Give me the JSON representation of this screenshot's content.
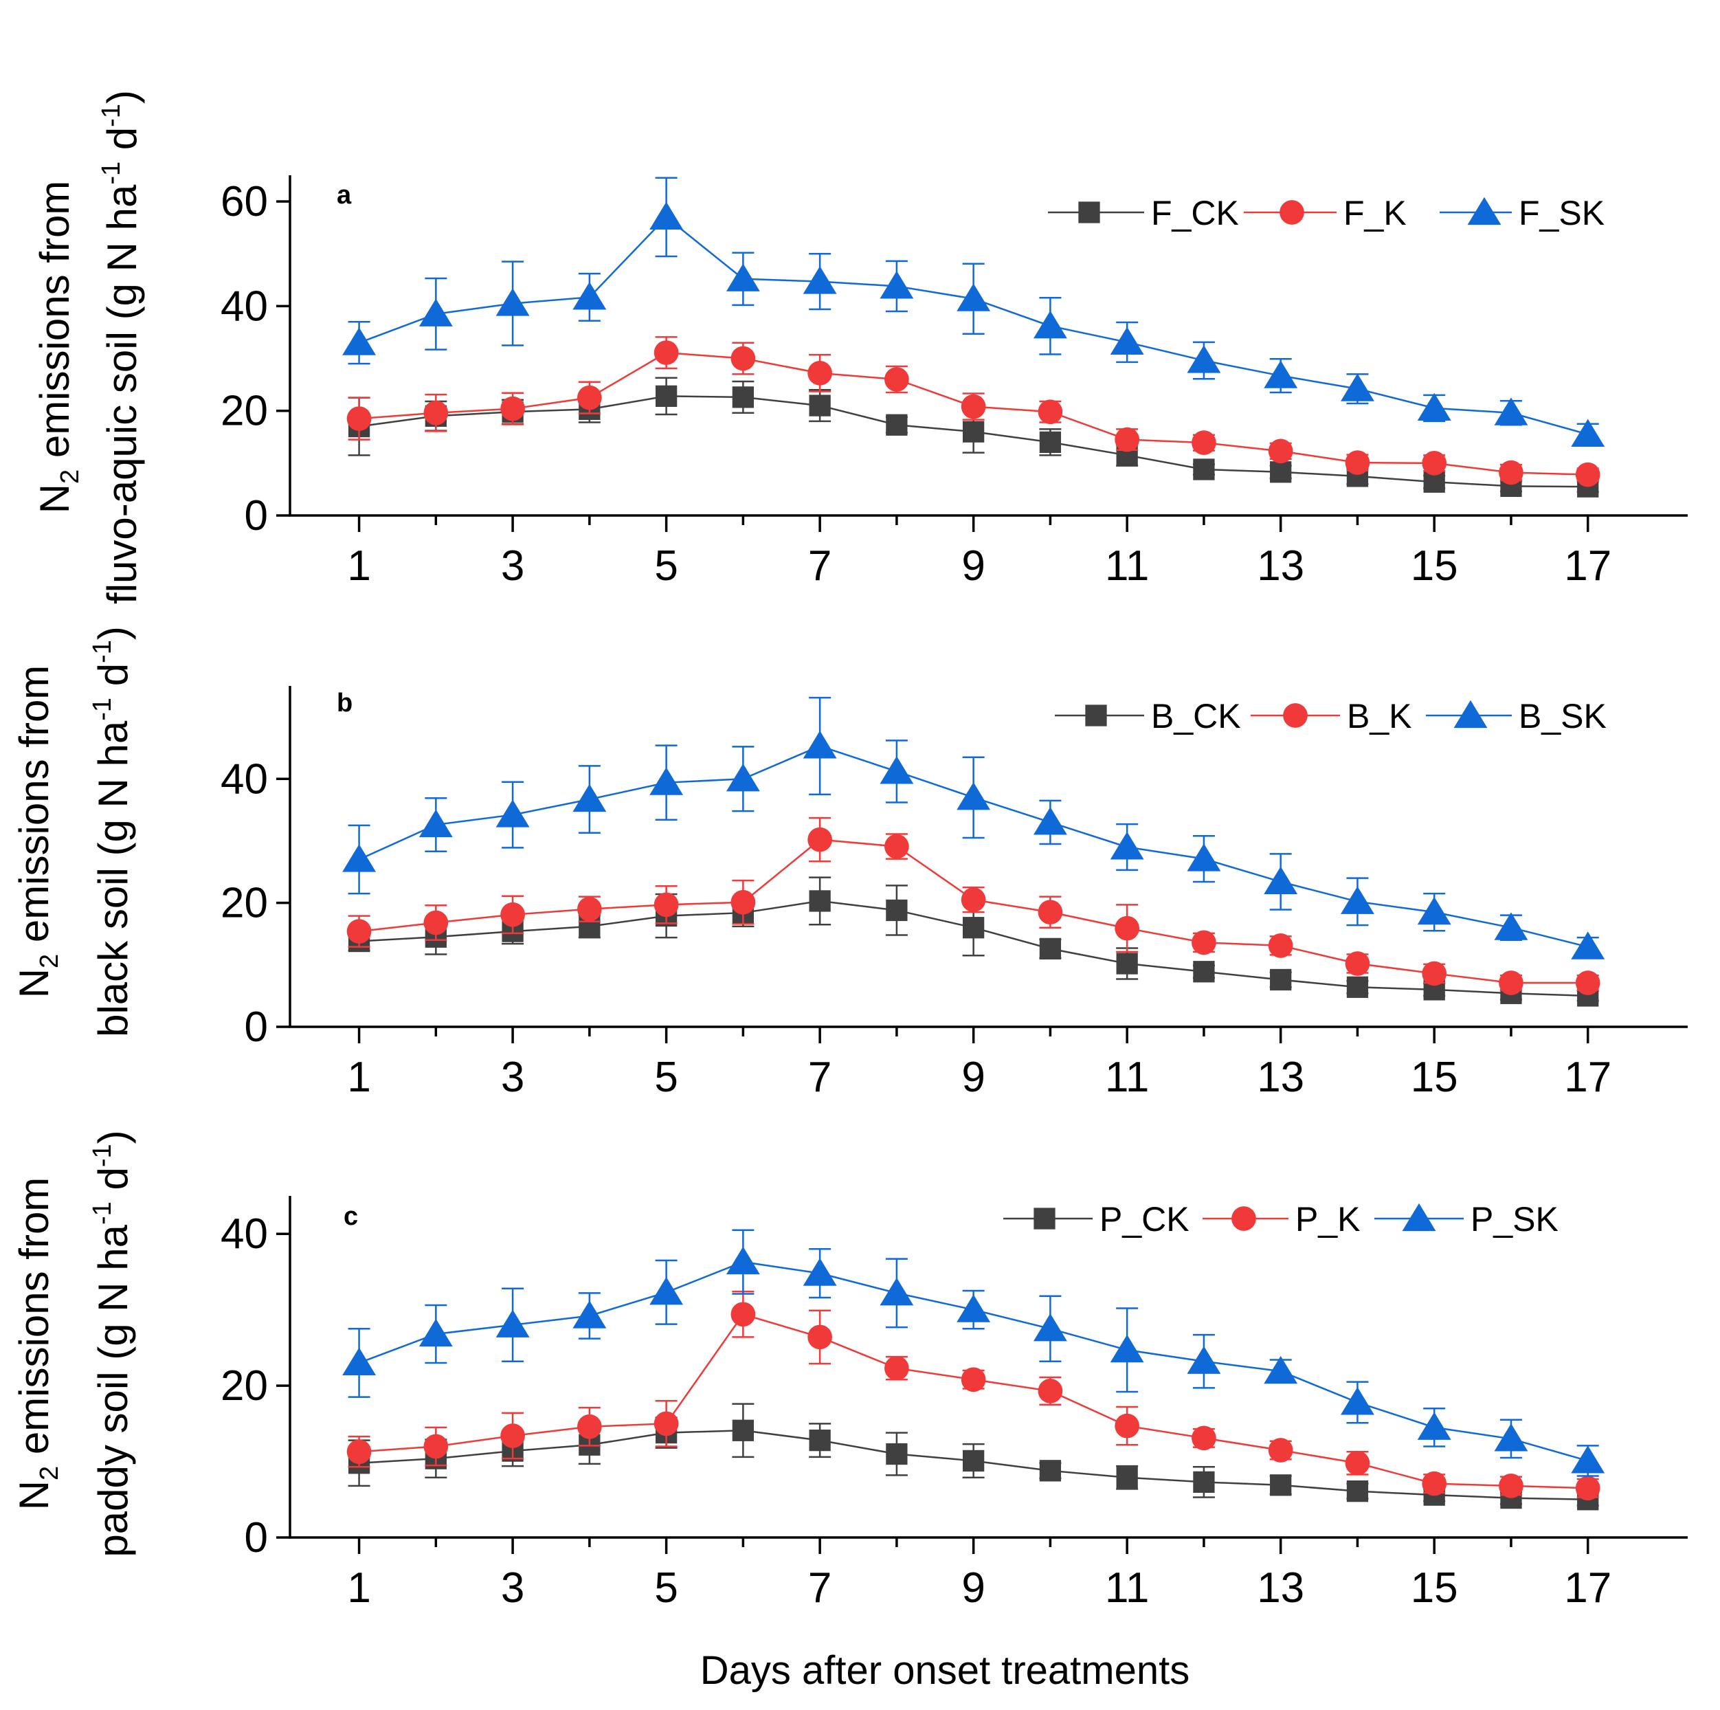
{
  "chart_data": [
    {
      "type": "line",
      "panel_label": "a",
      "ylabel_line1": "N",
      "ylabel_sub": "2",
      "ylabel_line1_rest": " emissions from",
      "ylabel_line2": "fluvo-aquic soil (g N ha",
      "ylabel_sup1": "-1",
      "ylabel_mid": " d",
      "ylabel_sup2": "-1",
      "ylabel_end": ")",
      "xlim": [
        0.1,
        18.3
      ],
      "ylim": [
        0,
        65
      ],
      "xticks": [
        1,
        3,
        5,
        7,
        9,
        11,
        13,
        15,
        17
      ],
      "xtick_labels": [
        "1",
        "3",
        "5",
        "7",
        "9",
        "11",
        "13",
        "15",
        "17"
      ],
      "yticks": [
        0,
        20,
        40,
        60
      ],
      "ytick_labels": [
        "0",
        "20",
        "40",
        "60"
      ],
      "x": [
        1,
        2,
        3,
        4,
        5,
        6,
        7,
        8,
        9,
        10,
        11,
        12,
        13,
        14,
        15,
        16,
        17
      ],
      "series": [
        {
          "name": "F_CK",
          "color": "#404040",
          "marker": "square",
          "values": [
            17,
            19,
            19.8,
            20.3,
            22.8,
            22.6,
            21,
            17.3,
            16,
            14,
            11.5,
            8.8,
            8.3,
            7.5,
            6.4,
            5.6,
            5.5
          ],
          "errors": [
            5.5,
            2.8,
            2.3,
            2.5,
            3.5,
            3,
            3,
            1.5,
            4,
            2.5,
            2,
            1,
            1.2,
            1.5,
            1.2,
            1,
            1
          ]
        },
        {
          "name": "F_K",
          "color": "#f03a3a",
          "marker": "circle",
          "values": [
            18.5,
            19.6,
            20.4,
            22.5,
            31.1,
            30,
            27.2,
            26,
            20.8,
            19.8,
            14.5,
            13.9,
            12.3,
            10.1,
            10,
            8.2,
            7.8
          ],
          "errors": [
            4,
            3.5,
            3,
            3,
            3,
            3,
            3.5,
            2.5,
            2.5,
            2,
            2,
            1.5,
            1.5,
            1.5,
            1.5,
            1.5,
            1.2
          ]
        },
        {
          "name": "F_SK",
          "color": "#0f6ad8",
          "marker": "triangle",
          "values": [
            33,
            38.5,
            40.5,
            41.7,
            57,
            45.2,
            44.7,
            43.8,
            41.4,
            36.2,
            33.1,
            29.6,
            26.7,
            24.2,
            20.5,
            19.6,
            15.5
          ],
          "errors": [
            4,
            6.8,
            8,
            4.5,
            7.5,
            5,
            5.3,
            4.8,
            6.7,
            5.4,
            3.8,
            3.5,
            3.2,
            2.8,
            2.5,
            2.3,
            2
          ]
        }
      ]
    },
    {
      "type": "line",
      "panel_label": "b",
      "ylabel_line1": "N",
      "ylabel_sub": "2",
      "ylabel_line1_rest": " emissions from",
      "ylabel_line2": "black soil (g N ha",
      "ylabel_sup1": "-1",
      "ylabel_mid": " d",
      "ylabel_sup2": "-1",
      "ylabel_end": ")",
      "xlim": [
        0.1,
        18.3
      ],
      "ylim": [
        0,
        55
      ],
      "xticks": [
        1,
        3,
        5,
        7,
        9,
        11,
        13,
        15,
        17
      ],
      "xtick_labels": [
        "1",
        "3",
        "5",
        "7",
        "9",
        "11",
        "13",
        "15",
        "17"
      ],
      "yticks": [
        0,
        20,
        40
      ],
      "ytick_labels": [
        "0",
        "20",
        "40"
      ],
      "x": [
        1,
        2,
        3,
        4,
        5,
        6,
        7,
        8,
        9,
        10,
        11,
        12,
        13,
        14,
        15,
        16,
        17
      ],
      "series": [
        {
          "name": "B_CK",
          "color": "#404040",
          "marker": "square",
          "values": [
            13.8,
            14.5,
            15.4,
            16.2,
            17.9,
            18.4,
            20.3,
            18.8,
            16,
            12.6,
            10.2,
            8.9,
            7.6,
            6.4,
            6,
            5.4,
            5
          ],
          "errors": [
            1.5,
            2.8,
            2,
            1.8,
            3.5,
            2.2,
            3.8,
            4,
            4.5,
            1.5,
            2.5,
            1,
            1.2,
            1,
            1,
            1,
            0.8
          ]
        },
        {
          "name": "B_K",
          "color": "#f03a3a",
          "marker": "circle",
          "values": [
            15.4,
            16.8,
            18.1,
            19,
            19.7,
            20.1,
            30.2,
            29.1,
            20.5,
            18.5,
            15.9,
            13.6,
            13.1,
            10.2,
            8.6,
            7.1,
            7.1
          ],
          "errors": [
            2.5,
            2.8,
            3,
            2,
            3,
            3.5,
            3.5,
            2,
            2,
            2.5,
            3.8,
            1.5,
            1.5,
            1.5,
            1.5,
            1.2,
            1.2
          ]
        },
        {
          "name": "B_SK",
          "color": "#0f6ad8",
          "marker": "triangle",
          "values": [
            27,
            32.6,
            34.2,
            36.7,
            39.4,
            40,
            45.3,
            41.2,
            37,
            33,
            29,
            27.1,
            23.4,
            20.2,
            18.5,
            16,
            12.9
          ],
          "errors": [
            5.5,
            4.3,
            5.3,
            5.4,
            6,
            5.2,
            7.8,
            5,
            6.5,
            3.5,
            3.7,
            3.7,
            4.5,
            3.8,
            3,
            2,
            1.5
          ]
        }
      ]
    },
    {
      "type": "line",
      "panel_label": "c",
      "ylabel_line1": "N",
      "ylabel_sub": "2",
      "ylabel_line1_rest": " emissions from",
      "ylabel_line2": "paddy soil (g N ha",
      "ylabel_sup1": "-1",
      "ylabel_mid": " d",
      "ylabel_sup2": "-1",
      "ylabel_end": ")",
      "xlim": [
        0.1,
        18.3
      ],
      "ylim": [
        0,
        45
      ],
      "xticks": [
        1,
        3,
        5,
        7,
        9,
        11,
        13,
        15,
        17
      ],
      "xtick_labels": [
        "1",
        "3",
        "5",
        "7",
        "9",
        "11",
        "13",
        "15",
        "17"
      ],
      "yticks": [
        0,
        20,
        40
      ],
      "ytick_labels": [
        "0",
        "20",
        "40"
      ],
      "x": [
        1,
        2,
        3,
        4,
        5,
        6,
        7,
        8,
        9,
        10,
        11,
        12,
        13,
        14,
        15,
        16,
        17
      ],
      "series": [
        {
          "name": "P_CK",
          "color": "#404040",
          "marker": "square",
          "values": [
            9.8,
            10.4,
            11.4,
            12.2,
            13.8,
            14.1,
            12.8,
            11,
            10.1,
            8.8,
            7.9,
            7.3,
            6.9,
            6.1,
            5.6,
            5.2,
            5
          ],
          "errors": [
            3,
            2.5,
            2,
            2.5,
            2,
            3.5,
            2.2,
            2.8,
            2.2,
            1,
            1.5,
            2,
            1.2,
            1,
            0.8,
            0.8,
            0.8
          ]
        },
        {
          "name": "P_K",
          "color": "#f03a3a",
          "marker": "circle",
          "values": [
            11.3,
            12,
            13.4,
            14.6,
            15,
            29.4,
            26.4,
            22.3,
            20.8,
            19.3,
            14.7,
            13.1,
            11.5,
            9.8,
            7.1,
            6.8,
            6.5
          ],
          "errors": [
            2,
            2.5,
            3,
            2.5,
            3,
            3,
            3.5,
            1.5,
            1.2,
            1.8,
            2.5,
            1.2,
            1.2,
            1.5,
            1.2,
            1.2,
            1.2
          ]
        },
        {
          "name": "P_SK",
          "color": "#0f6ad8",
          "marker": "triangle",
          "values": [
            23,
            26.8,
            28,
            29.2,
            32.3,
            36.3,
            34.8,
            32.2,
            30,
            27.5,
            24.7,
            23.2,
            21.9,
            17.8,
            14.5,
            13,
            10.1
          ],
          "errors": [
            4.5,
            3.8,
            4.8,
            3,
            4.2,
            4.2,
            3.2,
            4.5,
            2.5,
            4.3,
            5.5,
            3.5,
            1.5,
            2.7,
            2.5,
            2.5,
            2
          ]
        }
      ]
    }
  ],
  "xlabel": "Days after onset treatments"
}
